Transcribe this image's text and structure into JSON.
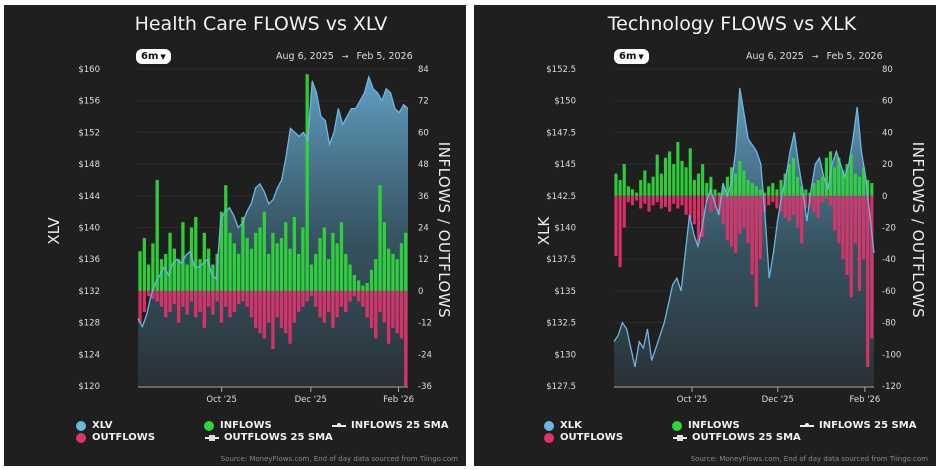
{
  "colors": {
    "price": "#6cb6e0",
    "inflows": "#2fd63a",
    "outflows": "#e0316a",
    "background": "#1f1f1f"
  },
  "source": "Source: MoneyFlows.com, End of day data sourced from Tiingo.com",
  "chart_data": [
    {
      "type": "bar+area",
      "title": "Health Care FLOWS vs XLV",
      "range_button": "6m",
      "date_from": "Aug 6, 2025",
      "date_arrow": "→",
      "date_to": "Feb 5, 2026",
      "ylabel_left": "XLV",
      "ylabel_right": "INFLOWS / OUTFLOWS",
      "ylim_left": [
        120,
        160
      ],
      "yticks_left": [
        "$120",
        "$124",
        "$128",
        "$132",
        "$136",
        "$140",
        "$144",
        "$148",
        "$152",
        "$156",
        "$160"
      ],
      "ylim_right": [
        -36,
        84
      ],
      "yticks_right": [
        "-36",
        "-24",
        "-12",
        "0",
        "12",
        "24",
        "36",
        "48",
        "60",
        "72",
        "84"
      ],
      "xticks": [
        {
          "label": "Oct '25",
          "pos": 0.31
        },
        {
          "label": "Dec '25",
          "pos": 0.64
        },
        {
          "label": "Feb '26",
          "pos": 0.965
        }
      ],
      "legend": {
        "price": "XLV",
        "inflows": "INFLOWS",
        "outflows": "OUTFLOWS",
        "inflows_sma": "INFLOWS 25 SMA",
        "outflows_sma": "OUTFLOWS 25 SMA"
      },
      "price": [
        128.5,
        127.5,
        129,
        131.5,
        133,
        134,
        135,
        134,
        135.5,
        136,
        135.5,
        136.5,
        137,
        135,
        135,
        135.5,
        136,
        134,
        133.5,
        141,
        142,
        142.5,
        141.5,
        140,
        140.5,
        142,
        143,
        145,
        145.5,
        144.5,
        143,
        143.5,
        145,
        146,
        149,
        152.5,
        152,
        151.5,
        152,
        151,
        158.5,
        157,
        154,
        153.5,
        150.5,
        152,
        155,
        153,
        154,
        155,
        155,
        156,
        157,
        159,
        157.5,
        157,
        156,
        157.5,
        157,
        155,
        154.5,
        155.5,
        155
      ],
      "inflows": [
        15,
        20,
        10,
        18,
        42,
        12,
        14,
        22,
        16,
        12,
        26,
        10,
        24,
        28,
        12,
        22,
        16,
        10,
        14,
        30,
        40,
        22,
        18,
        14,
        28,
        20,
        16,
        22,
        24,
        30,
        14,
        22,
        18,
        20,
        26,
        16,
        28,
        14,
        24,
        82,
        10,
        14,
        20,
        24,
        12,
        22,
        18,
        26,
        14,
        10,
        6,
        4,
        2,
        3,
        8,
        12,
        40,
        26,
        16,
        14,
        12,
        18,
        22
      ],
      "outflows": [
        -12,
        -8,
        -2,
        -3,
        -4,
        -6,
        -10,
        -8,
        -5,
        -12,
        -6,
        -9,
        -4,
        -10,
        -8,
        -14,
        -6,
        -9,
        -4,
        -12,
        -6,
        -10,
        -8,
        -5,
        -4,
        -6,
        -10,
        -14,
        -16,
        -18,
        -12,
        -22,
        -10,
        -14,
        -16,
        -20,
        -12,
        -8,
        -6,
        -4,
        -2,
        -6,
        -10,
        -12,
        -8,
        -14,
        -10,
        -6,
        -8,
        -4,
        -2,
        -4,
        -6,
        -10,
        -14,
        -18,
        -8,
        -12,
        -20,
        -14,
        -16,
        -18,
        -36
      ]
    },
    {
      "type": "bar+area",
      "title": "Technology FLOWS vs XLK",
      "range_button": "6m",
      "date_from": "Aug 6, 2025",
      "date_arrow": "→",
      "date_to": "Feb 5, 2026",
      "ylabel_left": "XLK",
      "ylabel_right": "INFLOWS / OUTFLOWS",
      "ylim_left": [
        127.5,
        152.5
      ],
      "yticks_left": [
        "$127.5",
        "$130",
        "$132.5",
        "$135",
        "$137.5",
        "$140",
        "$142.5",
        "$145",
        "$147.5",
        "$150",
        "$152.5"
      ],
      "ylim_right": [
        -120,
        80
      ],
      "yticks_right": [
        "-120",
        "-100",
        "-80",
        "-60",
        "-40",
        "-20",
        "0",
        "20",
        "40",
        "60",
        "80"
      ],
      "xticks": [
        {
          "label": "Oct '25",
          "pos": 0.3
        },
        {
          "label": "Dec '25",
          "pos": 0.63
        },
        {
          "label": "Feb '26",
          "pos": 0.965
        }
      ],
      "legend": {
        "price": "XLK",
        "inflows": "INFLOWS",
        "outflows": "OUTFLOWS",
        "inflows_sma": "INFLOWS 25 SMA",
        "outflows_sma": "OUTFLOWS 25 SMA"
      },
      "price": [
        131,
        131.5,
        132.5,
        132,
        130.5,
        129,
        131,
        130.5,
        132,
        129.5,
        130.5,
        131.5,
        132.5,
        134,
        135.5,
        136,
        135,
        138,
        141,
        139.5,
        138.5,
        140,
        142,
        143,
        142,
        141,
        143.5,
        142.5,
        143.5,
        146,
        151,
        149,
        147,
        146.5,
        146,
        145,
        141,
        136,
        138,
        140.5,
        142.5,
        144,
        146,
        147.5,
        145,
        143,
        140.5,
        143,
        145,
        145.5,
        144,
        143,
        145,
        146,
        145,
        144,
        145,
        147,
        149.5,
        146,
        144,
        141,
        138
      ],
      "inflows": [
        14,
        10,
        20,
        6,
        4,
        2,
        10,
        16,
        8,
        12,
        26,
        14,
        24,
        28,
        20,
        34,
        22,
        18,
        30,
        10,
        14,
        20,
        8,
        12,
        4,
        2,
        6,
        12,
        18,
        14,
        22,
        16,
        10,
        8,
        6,
        4,
        2,
        6,
        8,
        4,
        10,
        14,
        20,
        24,
        12,
        6,
        4,
        2,
        8,
        10,
        12,
        24,
        28,
        18,
        24,
        16,
        20,
        26,
        14,
        12,
        18,
        10,
        8
      ],
      "outflows": [
        -38,
        -45,
        -20,
        -4,
        -6,
        -3,
        -8,
        -5,
        -10,
        -6,
        -4,
        -8,
        -7,
        -10,
        -5,
        -8,
        -6,
        -12,
        -14,
        -18,
        -30,
        -26,
        -4,
        -10,
        -8,
        -12,
        -18,
        -28,
        -32,
        -36,
        -24,
        -20,
        -30,
        -50,
        -70,
        -40,
        -10,
        -6,
        -4,
        -8,
        -10,
        -14,
        -16,
        -12,
        -20,
        -30,
        -8,
        -6,
        -10,
        -14,
        -4,
        -2,
        -6,
        -22,
        -30,
        -40,
        -50,
        -64,
        -30,
        -60,
        -40,
        -108,
        -90
      ]
    }
  ]
}
